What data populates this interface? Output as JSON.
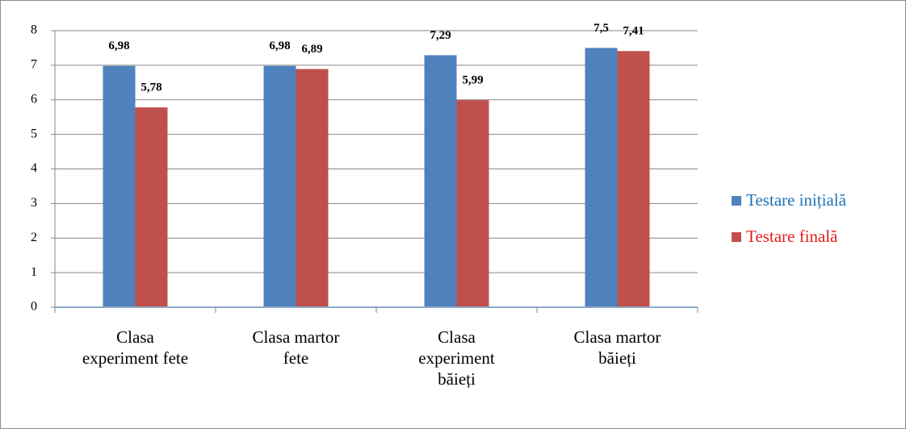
{
  "chart_data": {
    "type": "bar",
    "categories": [
      "Clasa experiment fete",
      "Clasa martor fete",
      "Clasa experiment băieți",
      "Clasa martor băieți"
    ],
    "series": [
      {
        "name": "Testare inițială",
        "color": "#4f81bd",
        "values": [
          6.98,
          6.98,
          7.29,
          7.5
        ],
        "value_labels": [
          "6,98",
          "6,98",
          "7,29",
          "7,5"
        ]
      },
      {
        "name": "Testare finală",
        "color": "#c0504d",
        "values": [
          5.78,
          6.89,
          5.99,
          7.41
        ],
        "value_labels": [
          "5,78",
          "6,89",
          "5,99",
          "7,41"
        ]
      }
    ],
    "ylim": [
      0,
      8
    ],
    "yticks": [
      0,
      1,
      2,
      3,
      4,
      5,
      6,
      7,
      8
    ],
    "grid": true,
    "legend": "right"
  }
}
